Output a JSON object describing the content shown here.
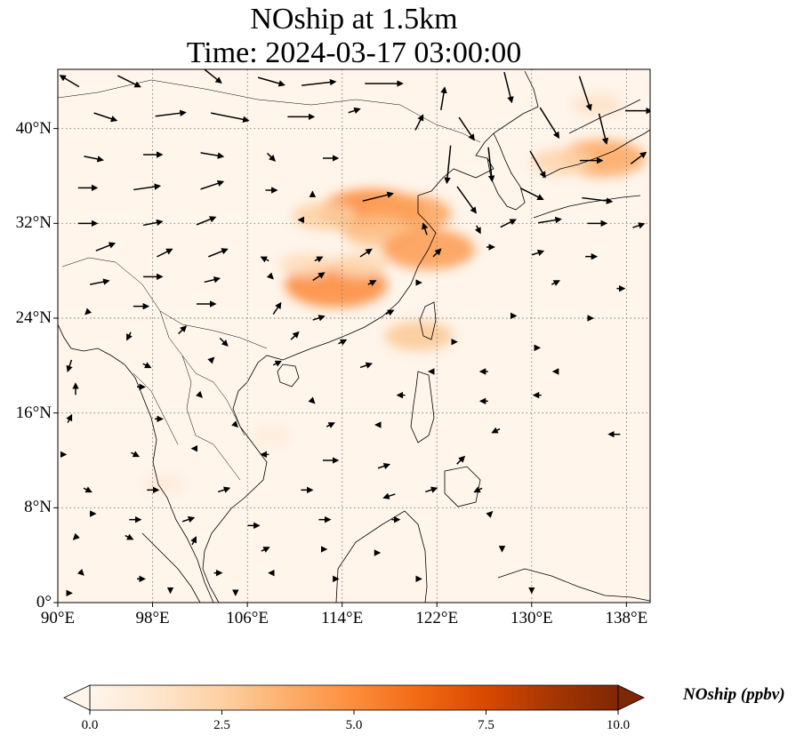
{
  "title": {
    "line1": "NOship at 1.5km",
    "line2": "Time: 2024-03-17 03:00:00"
  },
  "map": {
    "extent": {
      "lon_min": 90,
      "lon_max": 140,
      "lat_min": 0,
      "lat_max": 45
    },
    "gridlines": "dotted",
    "lat_ticks": [
      {
        "value": 0,
        "label": "0°"
      },
      {
        "value": 8,
        "label": "8°N"
      },
      {
        "value": 16,
        "label": "16°N"
      },
      {
        "value": 24,
        "label": "24°N"
      },
      {
        "value": 32,
        "label": "32°N"
      },
      {
        "value": 40,
        "label": "40°N"
      }
    ],
    "lon_ticks": [
      {
        "value": 90,
        "label": "90°E"
      },
      {
        "value": 98,
        "label": "98°E"
      },
      {
        "value": 106,
        "label": "106°E"
      },
      {
        "value": 114,
        "label": "114°E"
      },
      {
        "value": 122,
        "label": "122°E"
      },
      {
        "value": 130,
        "label": "130°E"
      },
      {
        "value": 138,
        "label": "138°E"
      }
    ],
    "field_hotspots": [
      {
        "lon": 116.5,
        "lat": 33.0,
        "value": 5.2
      },
      {
        "lon": 119.5,
        "lat": 32.8,
        "value": 4.2
      },
      {
        "lon": 112.5,
        "lat": 32.6,
        "value": 2.5
      },
      {
        "lon": 117.0,
        "lat": 31.3,
        "value": 3.0
      },
      {
        "lon": 121.3,
        "lat": 29.8,
        "value": 4.5
      },
      {
        "lon": 113.5,
        "lat": 26.8,
        "value": 5.2
      },
      {
        "lon": 111.0,
        "lat": 28.5,
        "value": 1.8
      },
      {
        "lon": 115.5,
        "lat": 28.5,
        "value": 2.0
      },
      {
        "lon": 136.0,
        "lat": 37.5,
        "value": 4.0
      },
      {
        "lon": 132.5,
        "lat": 37.2,
        "value": 2.2
      },
      {
        "lon": 135.5,
        "lat": 42.0,
        "value": 1.5
      },
      {
        "lon": 120.5,
        "lat": 22.5,
        "value": 2.8
      },
      {
        "lon": 108.0,
        "lat": 14.0,
        "value": 0.8
      },
      {
        "lon": 99.0,
        "lat": 10.0,
        "value": 0.9
      }
    ],
    "wind_vectors": [
      {
        "lon": 91.0,
        "lat": 44.0,
        "u": -5,
        "v": 3
      },
      {
        "lon": 96.0,
        "lat": 44.0,
        "u": 6,
        "v": -3
      },
      {
        "lon": 103.0,
        "lat": 44.5,
        "u": 5,
        "v": -4
      },
      {
        "lon": 108.0,
        "lat": 44.0,
        "u": 7,
        "v": -2
      },
      {
        "lon": 112.0,
        "lat": 43.8,
        "u": 9,
        "v": 1
      },
      {
        "lon": 117.5,
        "lat": 43.8,
        "u": 10,
        "v": 0
      },
      {
        "lon": 122.5,
        "lat": 42.5,
        "u": 1,
        "v": 6
      },
      {
        "lon": 128.0,
        "lat": 43.5,
        "u": 2,
        "v": -8
      },
      {
        "lon": 134.5,
        "lat": 43.0,
        "u": 3,
        "v": -9
      },
      {
        "lon": 139.0,
        "lat": 41.5,
        "u": 7,
        "v": 0
      },
      {
        "lon": 94.0,
        "lat": 41.0,
        "u": 6,
        "v": -2
      },
      {
        "lon": 99.5,
        "lat": 41.2,
        "u": 8,
        "v": 1
      },
      {
        "lon": 104.5,
        "lat": 41.0,
        "u": 10,
        "v": -2
      },
      {
        "lon": 110.5,
        "lat": 41.0,
        "u": 7,
        "v": 0
      },
      {
        "lon": 115.0,
        "lat": 41.5,
        "u": 3,
        "v": 1
      },
      {
        "lon": 120.5,
        "lat": 40.5,
        "u": 2,
        "v": 4
      },
      {
        "lon": 124.5,
        "lat": 40.0,
        "u": 4,
        "v": -6
      },
      {
        "lon": 131.5,
        "lat": 40.5,
        "u": 5,
        "v": -8
      },
      {
        "lon": 136.0,
        "lat": 40.0,
        "u": 2,
        "v": -8
      },
      {
        "lon": 93.0,
        "lat": 37.5,
        "u": 5,
        "v": -1
      },
      {
        "lon": 98.0,
        "lat": 37.8,
        "u": 5,
        "v": 0
      },
      {
        "lon": 103.0,
        "lat": 37.8,
        "u": 6,
        "v": -1
      },
      {
        "lon": 108.0,
        "lat": 37.6,
        "u": 2,
        "v": -2
      },
      {
        "lon": 113.0,
        "lat": 37.5,
        "u": 4,
        "v": 0
      },
      {
        "lon": 123.0,
        "lat": 37.0,
        "u": -1,
        "v": -10
      },
      {
        "lon": 126.5,
        "lat": 37.0,
        "u": 1,
        "v": -9
      },
      {
        "lon": 130.5,
        "lat": 37.0,
        "u": 4,
        "v": -7
      },
      {
        "lon": 135.0,
        "lat": 37.3,
        "u": 6,
        "v": 0
      },
      {
        "lon": 139.0,
        "lat": 37.5,
        "u": 4,
        "v": 3
      },
      {
        "lon": 92.5,
        "lat": 35.0,
        "u": 5,
        "v": 0
      },
      {
        "lon": 97.5,
        "lat": 35.0,
        "u": 7,
        "v": 1
      },
      {
        "lon": 103.0,
        "lat": 35.2,
        "u": 6,
        "v": 2
      },
      {
        "lon": 108.0,
        "lat": 34.8,
        "u": 3,
        "v": 0
      },
      {
        "lon": 111.5,
        "lat": 34.5,
        "u": 0,
        "v": 1
      },
      {
        "lon": 117.0,
        "lat": 34.2,
        "u": 8,
        "v": 2
      },
      {
        "lon": 124.5,
        "lat": 34.0,
        "u": 5,
        "v": -7
      },
      {
        "lon": 130.0,
        "lat": 34.5,
        "u": 6,
        "v": -3
      },
      {
        "lon": 135.5,
        "lat": 34.0,
        "u": 8,
        "v": -1
      },
      {
        "lon": 92.5,
        "lat": 32.0,
        "u": 5,
        "v": 0
      },
      {
        "lon": 98.0,
        "lat": 32.0,
        "u": 5,
        "v": 1
      },
      {
        "lon": 102.5,
        "lat": 32.2,
        "u": 5,
        "v": 2
      },
      {
        "lon": 110.5,
        "lat": 32.3,
        "u": -1,
        "v": 0
      },
      {
        "lon": 121.0,
        "lat": 31.5,
        "u": -1,
        "v": 3
      },
      {
        "lon": 125.5,
        "lat": 31.5,
        "u": 1,
        "v": -2
      },
      {
        "lon": 128.0,
        "lat": 32.0,
        "u": 4,
        "v": 2
      },
      {
        "lon": 131.5,
        "lat": 32.2,
        "u": 6,
        "v": 1
      },
      {
        "lon": 135.5,
        "lat": 32.0,
        "u": 5,
        "v": 0
      },
      {
        "lon": 139.0,
        "lat": 31.8,
        "u": 3,
        "v": 1
      },
      {
        "lon": 94.0,
        "lat": 30.0,
        "u": 5,
        "v": 2
      },
      {
        "lon": 99.0,
        "lat": 29.5,
        "u": 4,
        "v": 2
      },
      {
        "lon": 103.5,
        "lat": 29.5,
        "u": 5,
        "v": 2
      },
      {
        "lon": 107.5,
        "lat": 29.0,
        "u": -2,
        "v": 1
      },
      {
        "lon": 112.0,
        "lat": 29.0,
        "u": 2,
        "v": 1
      },
      {
        "lon": 116.0,
        "lat": 29.5,
        "u": 3,
        "v": 2
      },
      {
        "lon": 122.0,
        "lat": 29.5,
        "u": 2,
        "v": 2
      },
      {
        "lon": 126.5,
        "lat": 30.0,
        "u": 2,
        "v": 0
      },
      {
        "lon": 130.5,
        "lat": 29.5,
        "u": 3,
        "v": 1
      },
      {
        "lon": 135.0,
        "lat": 29.2,
        "u": 3,
        "v": 0
      },
      {
        "lon": 93.5,
        "lat": 27.0,
        "u": 5,
        "v": 1
      },
      {
        "lon": 98.0,
        "lat": 27.5,
        "u": 5,
        "v": 0
      },
      {
        "lon": 103.0,
        "lat": 27.2,
        "u": 4,
        "v": 1
      },
      {
        "lon": 108.0,
        "lat": 27.5,
        "u": 1,
        "v": -1
      },
      {
        "lon": 112.0,
        "lat": 27.5,
        "u": 3,
        "v": 2
      },
      {
        "lon": 116.5,
        "lat": 27.0,
        "u": 2,
        "v": 1
      },
      {
        "lon": 120.5,
        "lat": 27.0,
        "u": 1,
        "v": 0
      },
      {
        "lon": 132.0,
        "lat": 27.0,
        "u": 2,
        "v": 1
      },
      {
        "lon": 137.5,
        "lat": 26.5,
        "u": 2,
        "v": 0
      },
      {
        "lon": 92.5,
        "lat": 24.5,
        "u": -1,
        "v": -1
      },
      {
        "lon": 97.0,
        "lat": 25.0,
        "u": 4,
        "v": 0
      },
      {
        "lon": 102.5,
        "lat": 25.2,
        "u": 5,
        "v": 0
      },
      {
        "lon": 108.5,
        "lat": 24.8,
        "u": 2,
        "v": 3
      },
      {
        "lon": 112.0,
        "lat": 24.0,
        "u": 3,
        "v": 1
      },
      {
        "lon": 118.0,
        "lat": 24.5,
        "u": 2,
        "v": 1
      },
      {
        "lon": 128.5,
        "lat": 24.2,
        "u": 1,
        "v": 0
      },
      {
        "lon": 135.0,
        "lat": 24.0,
        "u": 1,
        "v": 0
      },
      {
        "lon": 96.0,
        "lat": 22.5,
        "u": -1,
        "v": -2
      },
      {
        "lon": 100.5,
        "lat": 23.0,
        "u": 2,
        "v": 2
      },
      {
        "lon": 104.0,
        "lat": 22.0,
        "u": 2,
        "v": -2
      },
      {
        "lon": 110.0,
        "lat": 22.5,
        "u": 2,
        "v": 2
      },
      {
        "lon": 114.0,
        "lat": 22.0,
        "u": 2,
        "v": 1
      },
      {
        "lon": 123.5,
        "lat": 22.0,
        "u": 1,
        "v": 0
      },
      {
        "lon": 130.5,
        "lat": 21.5,
        "u": 1,
        "v": 0
      },
      {
        "lon": 91.0,
        "lat": 20.0,
        "u": -1,
        "v": -3
      },
      {
        "lon": 97.5,
        "lat": 20.0,
        "u": 2,
        "v": -1
      },
      {
        "lon": 103.0,
        "lat": 20.5,
        "u": 1,
        "v": 1
      },
      {
        "lon": 108.5,
        "lat": 20.2,
        "u": 2,
        "v": 1
      },
      {
        "lon": 116.0,
        "lat": 20.0,
        "u": 3,
        "v": 1
      },
      {
        "lon": 121.5,
        "lat": 19.5,
        "u": -1,
        "v": 0
      },
      {
        "lon": 126.0,
        "lat": 19.5,
        "u": -2,
        "v": 0
      },
      {
        "lon": 132.0,
        "lat": 19.5,
        "u": -1,
        "v": 0
      },
      {
        "lon": 91.5,
        "lat": 18.0,
        "u": 0,
        "v": 3
      },
      {
        "lon": 97.0,
        "lat": 18.2,
        "u": 2,
        "v": 0
      },
      {
        "lon": 102.0,
        "lat": 17.5,
        "u": 1,
        "v": -1
      },
      {
        "lon": 111.5,
        "lat": 17.0,
        "u": 1,
        "v": -1
      },
      {
        "lon": 119.0,
        "lat": 17.5,
        "u": -2,
        "v": 0
      },
      {
        "lon": 126.0,
        "lat": 17.0,
        "u": -2,
        "v": 0
      },
      {
        "lon": 130.5,
        "lat": 17.5,
        "u": -2,
        "v": 0
      },
      {
        "lon": 91.0,
        "lat": 15.5,
        "u": 1,
        "v": 2
      },
      {
        "lon": 98.5,
        "lat": 15.5,
        "u": 2,
        "v": 0
      },
      {
        "lon": 105.0,
        "lat": 15.0,
        "u": 1,
        "v": -1
      },
      {
        "lon": 113.0,
        "lat": 15.0,
        "u": 2,
        "v": 1
      },
      {
        "lon": 117.0,
        "lat": 15.0,
        "u": -1,
        "v": 0
      },
      {
        "lon": 127.0,
        "lat": 14.5,
        "u": -2,
        "v": -1
      },
      {
        "lon": 137.0,
        "lat": 14.2,
        "u": -3,
        "v": 0
      },
      {
        "lon": 90.5,
        "lat": 12.5,
        "u": 1,
        "v": 0
      },
      {
        "lon": 96.5,
        "lat": 12.5,
        "u": 2,
        "v": -1
      },
      {
        "lon": 101.5,
        "lat": 13.0,
        "u": -1,
        "v": 0
      },
      {
        "lon": 107.5,
        "lat": 12.5,
        "u": -2,
        "v": 0
      },
      {
        "lon": 113.0,
        "lat": 12.0,
        "u": 4,
        "v": 0
      },
      {
        "lon": 117.5,
        "lat": 11.5,
        "u": 3,
        "v": 1
      },
      {
        "lon": 124.0,
        "lat": 12.0,
        "u": 2,
        "v": 2
      },
      {
        "lon": 92.5,
        "lat": 9.5,
        "u": 2,
        "v": -1
      },
      {
        "lon": 98.0,
        "lat": 9.5,
        "u": 3,
        "v": 0
      },
      {
        "lon": 104.0,
        "lat": 9.5,
        "u": 3,
        "v": 1
      },
      {
        "lon": 111.0,
        "lat": 9.5,
        "u": 3,
        "v": 0
      },
      {
        "lon": 118.0,
        "lat": 9.0,
        "u": -3,
        "v": -1
      },
      {
        "lon": 121.5,
        "lat": 9.5,
        "u": 3,
        "v": 1
      },
      {
        "lon": 125.5,
        "lat": 9.5,
        "u": -2,
        "v": -1
      },
      {
        "lon": 93.0,
        "lat": 7.5,
        "u": 1,
        "v": 0
      },
      {
        "lon": 96.5,
        "lat": 7.0,
        "u": 3,
        "v": 0
      },
      {
        "lon": 101.0,
        "lat": 7.0,
        "u": 3,
        "v": 1
      },
      {
        "lon": 106.5,
        "lat": 6.5,
        "u": 3,
        "v": 0
      },
      {
        "lon": 112.5,
        "lat": 7.0,
        "u": 3,
        "v": 0
      },
      {
        "lon": 118.5,
        "lat": 7.0,
        "u": 2,
        "v": 0
      },
      {
        "lon": 126.5,
        "lat": 7.5,
        "u": 1,
        "v": 1
      },
      {
        "lon": 91.5,
        "lat": 5.5,
        "u": -1,
        "v": -1
      },
      {
        "lon": 96.0,
        "lat": 5.5,
        "u": 2,
        "v": -1
      },
      {
        "lon": 101.5,
        "lat": 5.2,
        "u": 1,
        "v": 2
      },
      {
        "lon": 107.5,
        "lat": 4.5,
        "u": 2,
        "v": 1
      },
      {
        "lon": 112.5,
        "lat": 4.5,
        "u": 1,
        "v": 0
      },
      {
        "lon": 117.0,
        "lat": 4.2,
        "u": 1,
        "v": 0
      },
      {
        "lon": 127.5,
        "lat": 4.5,
        "u": 0,
        "v": -1
      },
      {
        "lon": 92.0,
        "lat": 2.5,
        "u": 1,
        "v": -1
      },
      {
        "lon": 97.0,
        "lat": 2.0,
        "u": 2,
        "v": 0
      },
      {
        "lon": 103.5,
        "lat": 2.5,
        "u": 2,
        "v": 0
      },
      {
        "lon": 108.0,
        "lat": 2.5,
        "u": -1,
        "v": 0
      },
      {
        "lon": 113.5,
        "lat": 2.0,
        "u": 1,
        "v": 0
      },
      {
        "lon": 120.5,
        "lat": 2.0,
        "u": 1,
        "v": 0
      },
      {
        "lon": 130.0,
        "lat": 1.0,
        "u": 0,
        "v": -1
      },
      {
        "lon": 91.0,
        "lat": 0.8,
        "u": 1,
        "v": 0
      },
      {
        "lon": 99.5,
        "lat": 1.0,
        "u": 0,
        "v": -1
      },
      {
        "lon": 105.0,
        "lat": 0.8,
        "u": 0,
        "v": -1
      }
    ]
  },
  "colorbar": {
    "label": "NOship (ppbv)",
    "min": 0,
    "max": 10,
    "extend": "both",
    "colormap": [
      "#fff5eb",
      "#fee6ce",
      "#fdd0a2",
      "#fdae6b",
      "#fd8d3c",
      "#f16913",
      "#d94801",
      "#a63603",
      "#7f2704"
    ],
    "ticks": [
      {
        "value": 0,
        "label": "0.0"
      },
      {
        "value": 2.5,
        "label": "2.5"
      },
      {
        "value": 5,
        "label": "5.0"
      },
      {
        "value": 7.5,
        "label": "7.5"
      },
      {
        "value": 10,
        "label": "10.0"
      }
    ]
  }
}
